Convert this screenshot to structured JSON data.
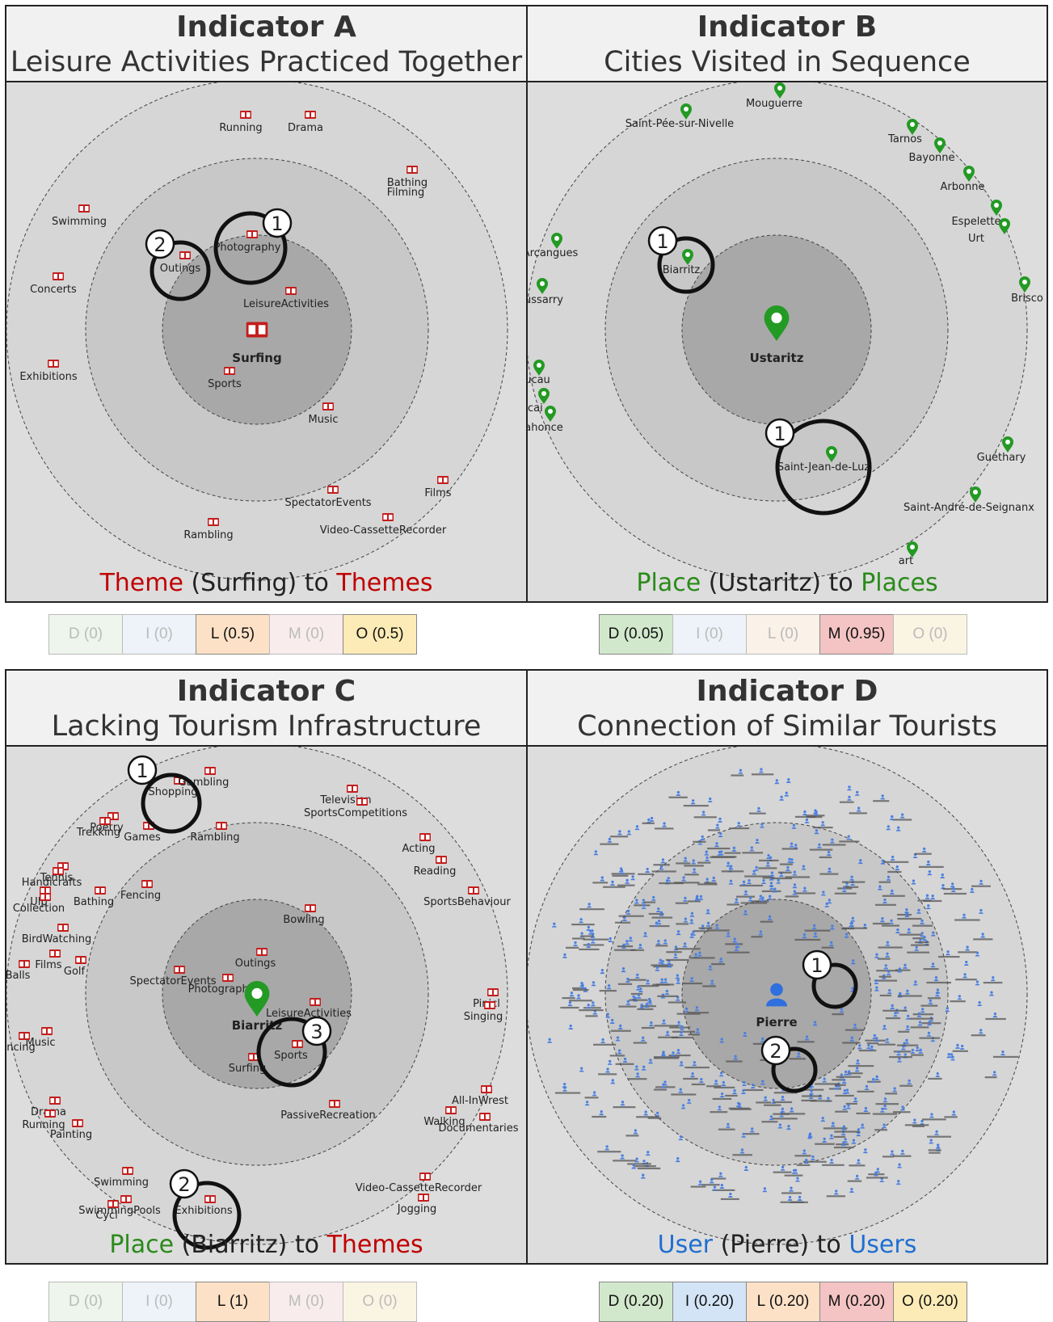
{
  "panels": [
    {
      "id": "a",
      "title": "Indicator A",
      "subtitle": "Leisure Activities Practiced Together",
      "center": {
        "label": "Surfing",
        "kind": "theme"
      },
      "caption": {
        "p1": "Theme",
        "p2": " (Surfing) to ",
        "p3": "Themes",
        "c1": "#c00000",
        "c3": "#c00000"
      },
      "items": [
        "Running",
        "Drama",
        "Bathing",
        "Filming",
        "Swimming",
        "Concerts",
        "Exhibitions",
        "Outings",
        "Photography",
        "LeisureActivities",
        "Sports",
        "Music",
        "Films",
        "SpectatorEvents",
        "Rambling",
        "Video-CassetteRecorder"
      ],
      "markers": [
        "1",
        "2"
      ],
      "scores": [
        {
          "label": "D (0)",
          "active": false,
          "color": "#d9ecd2"
        },
        {
          "label": "I (0)",
          "active": false,
          "color": "#d6e6f7"
        },
        {
          "label": "L (0.5)",
          "active": true,
          "color": "#fde1c6"
        },
        {
          "label": "M (0)",
          "active": false,
          "color": "#f6d3d3"
        },
        {
          "label": "O (0.5)",
          "active": true,
          "color": "#fcebb6"
        }
      ]
    },
    {
      "id": "b",
      "title": "Indicator B",
      "subtitle": "Cities Visited in Sequence",
      "center": {
        "label": "Ustaritz",
        "kind": "place"
      },
      "caption": {
        "p1": "Place",
        "p2": " (Ustaritz) to ",
        "p3": "Places",
        "c1": "#2a8a1a",
        "c3": "#2a8a1a"
      },
      "items": [
        "Mouguerre",
        "Saint-Pée-sur-Nivelle",
        "Tarnos",
        "Bayonne",
        "Arbonne",
        "Espelette",
        "Urt",
        "Arcangues",
        "Biarritz",
        "ussarry",
        "Brisco",
        "ucau",
        "scai",
        "ahonce",
        "Saint-Jean-de-Luz",
        "Guéthary",
        "Saint-André-de-Seignanx",
        "art"
      ],
      "markers": [
        "1",
        "1"
      ],
      "scores": [
        {
          "label": "D (0.05)",
          "active": true,
          "color": "#d2e8cc"
        },
        {
          "label": "I (0)",
          "active": false,
          "color": "#d6e6f7"
        },
        {
          "label": "L (0)",
          "active": false,
          "color": "#fde1c6"
        },
        {
          "label": "M (0.95)",
          "active": true,
          "color": "#f4c3c3"
        },
        {
          "label": "O (0)",
          "active": false,
          "color": "#fcebb6"
        }
      ]
    },
    {
      "id": "c",
      "title": "Indicator C",
      "subtitle": "Lacking Tourism Infrastructure",
      "center": {
        "label": "Biarritz",
        "kind": "place"
      },
      "caption": {
        "p1": "Place",
        "p2": " (Biarritz) to ",
        "p3": "Themes",
        "c1": "#2a8a1a",
        "c3": "#c00000"
      },
      "items": [
        "Shopping",
        "Gambling",
        "Television",
        "SportsCompetitions",
        "Poetry",
        "Trekking",
        "Games",
        "Rambling",
        "Acting",
        "Reading",
        "Tennis",
        "Handicrafts",
        "Bathing",
        "Fencing",
        "Ulp",
        "Collection",
        "SportsBehaviour",
        "Bowling",
        "BirdWatching",
        "Films",
        "Golf",
        "Outings",
        "Balls",
        "SpectatorEvents",
        "Photography",
        "Pinicl",
        "Singing",
        "LeisureActivities",
        "Music",
        "ancing",
        "Sports",
        "Surfing",
        "Drama",
        "Running",
        "Painting",
        "PassiveRecreation",
        "All-InWrest",
        "Walking",
        "Documentaries",
        "Swimming",
        "SwimmingPools",
        "Exhibitions",
        "Cycl",
        "Video-CassetteRecorder",
        "Jogging"
      ],
      "markers": [
        "1",
        "2",
        "3"
      ],
      "scores": [
        {
          "label": "D (0)",
          "active": false,
          "color": "#d9ecd2"
        },
        {
          "label": "I (0)",
          "active": false,
          "color": "#d6e6f7"
        },
        {
          "label": "L (1)",
          "active": true,
          "color": "#fde1c6"
        },
        {
          "label": "M (0)",
          "active": false,
          "color": "#f6d3d3"
        },
        {
          "label": "O (0)",
          "active": false,
          "color": "#fcebb6"
        }
      ]
    },
    {
      "id": "d",
      "title": "Indicator D",
      "subtitle": "Connection of Similar Tourists",
      "center": {
        "label": "Pierre",
        "kind": "user"
      },
      "caption": {
        "p1": "User",
        "p2": " (Pierre) to ",
        "p3": "Users",
        "c1": "#1f6fd1",
        "c3": "#1f6fd1"
      },
      "items": [],
      "markers": [
        "1",
        "2"
      ],
      "scores": [
        {
          "label": "D (0.20)",
          "active": true,
          "color": "#d2e8cc"
        },
        {
          "label": "I (0.20)",
          "active": true,
          "color": "#d3e4f7"
        },
        {
          "label": "L (0.20)",
          "active": true,
          "color": "#fde1c6"
        },
        {
          "label": "M (0.20)",
          "active": true,
          "color": "#f4c3c3"
        },
        {
          "label": "O (0.20)",
          "active": true,
          "color": "#fcebb6"
        }
      ]
    }
  ]
}
